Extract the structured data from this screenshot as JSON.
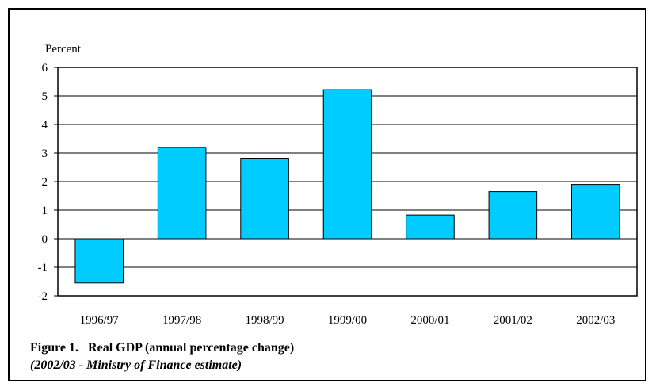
{
  "chart_data": {
    "type": "bar",
    "categories": [
      "1996/97",
      "1997/98",
      "1998/99",
      "1999/00",
      "2000/01",
      "2001/02",
      "2002/03"
    ],
    "values": [
      -1.55,
      3.2,
      2.82,
      5.22,
      0.83,
      1.65,
      1.9
    ],
    "ylabel": "Percent",
    "ylim": [
      -2,
      6
    ],
    "yticks": [
      -2,
      -1,
      0,
      1,
      2,
      3,
      4,
      5,
      6
    ],
    "grid": true,
    "bar_color": "#00ccff"
  },
  "caption": {
    "number": "Figure 1.",
    "title": "Real GDP (annual percentage change)",
    "note": "(2002/03 - Ministry of Finance estimate)"
  }
}
